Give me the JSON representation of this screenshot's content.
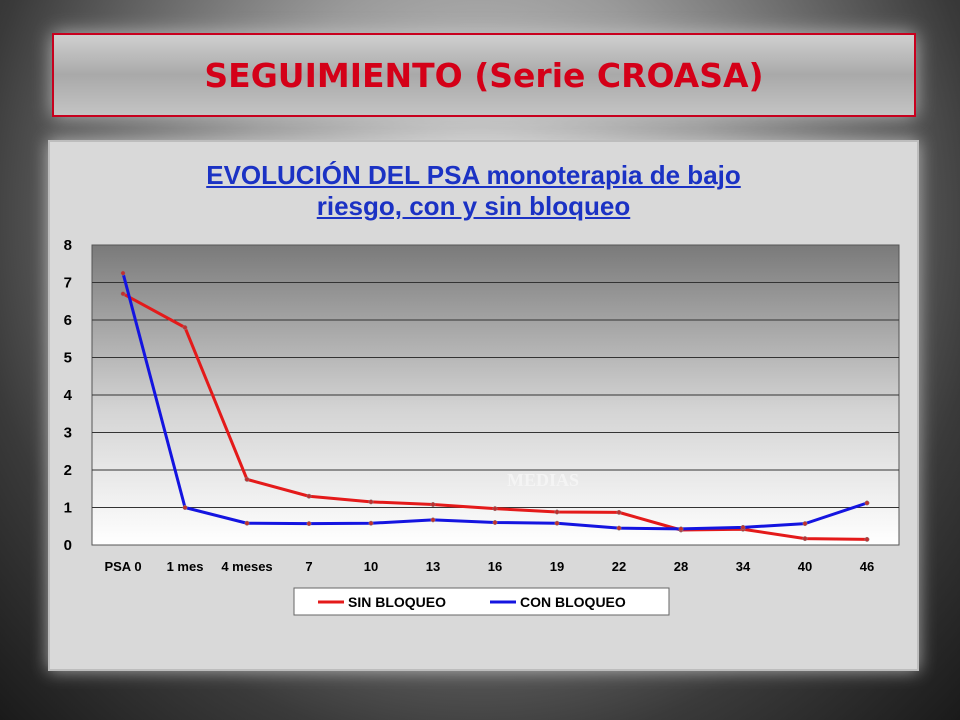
{
  "slide_title": "SEGUIMIENTO (Serie CROASA)",
  "chart_data": {
    "type": "line",
    "title_line1": "EVOLUCIÓN DEL PSA monoterapia de bajo",
    "title_line2": "riesgo, con y sin bloqueo",
    "categories": [
      "PSA 0",
      "1 mes",
      "4 meses",
      "7",
      "10",
      "13",
      "16",
      "19",
      "22",
      "28",
      "34",
      "40",
      "46"
    ],
    "ylim": [
      0,
      8
    ],
    "yticks": [
      0,
      1,
      2,
      3,
      4,
      5,
      6,
      7,
      8
    ],
    "grid": true,
    "legend_position": "bottom",
    "annotation": "MEDIAS",
    "series": [
      {
        "name": "SIN BLOQUEO",
        "color": "#e41a1a",
        "values": [
          6.7,
          5.8,
          1.75,
          1.3,
          1.15,
          1.08,
          0.97,
          0.88,
          0.87,
          0.4,
          0.42,
          0.17,
          0.15
        ]
      },
      {
        "name": "CON BLOQUEO",
        "color": "#1414e0",
        "values": [
          7.25,
          1.0,
          0.58,
          0.57,
          0.58,
          0.67,
          0.6,
          0.58,
          0.45,
          0.43,
          0.47,
          0.57,
          1.12
        ]
      }
    ]
  }
}
